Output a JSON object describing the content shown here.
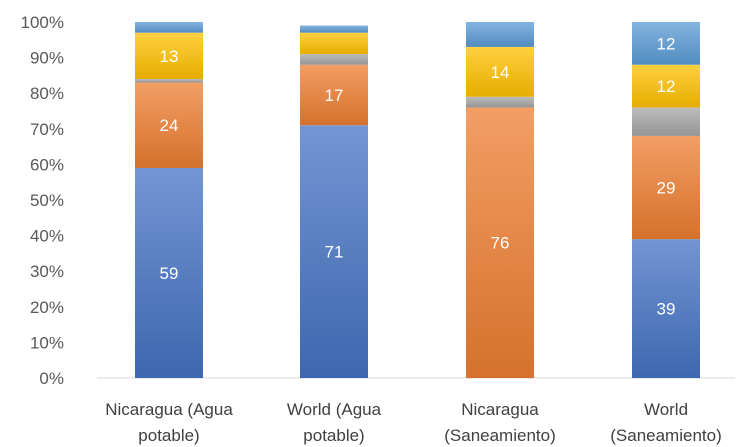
{
  "chart_data": {
    "type": "bar",
    "stacked": true,
    "percent": true,
    "categories": [
      [
        "Nicaragua (Agua",
        "potable)"
      ],
      [
        "World (Agua",
        "potable)"
      ],
      [
        "Nicaragua",
        "(Saneamiento)"
      ],
      [
        "World",
        "(Saneamiento)"
      ]
    ],
    "series": [
      {
        "values": [
          59,
          71,
          0,
          39
        ],
        "labels": [
          "59",
          "71",
          "",
          "39"
        ],
        "color": "#4472c4"
      },
      {
        "values": [
          24,
          17,
          76,
          29
        ],
        "labels": [
          "24",
          "17",
          "76",
          "29"
        ],
        "color": "#ed7d31"
      },
      {
        "values": [
          1,
          3,
          3,
          8
        ],
        "labels": [
          "",
          "",
          "",
          ""
        ],
        "color": "#a5a5a5"
      },
      {
        "values": [
          13,
          6,
          14,
          12
        ],
        "labels": [
          "13",
          "",
          "14",
          "12"
        ],
        "color": "#ffc000"
      },
      {
        "values": [
          3,
          2,
          7,
          12
        ],
        "labels": [
          "",
          "",
          "",
          "12"
        ],
        "color": "#5b9bd5"
      }
    ],
    "y_ticks": [
      "0%",
      "10%",
      "20%",
      "30%",
      "40%",
      "50%",
      "60%",
      "70%",
      "80%",
      "90%",
      "100%"
    ],
    "ylim": [
      0,
      100
    ],
    "grid": false,
    "legend": "none"
  }
}
